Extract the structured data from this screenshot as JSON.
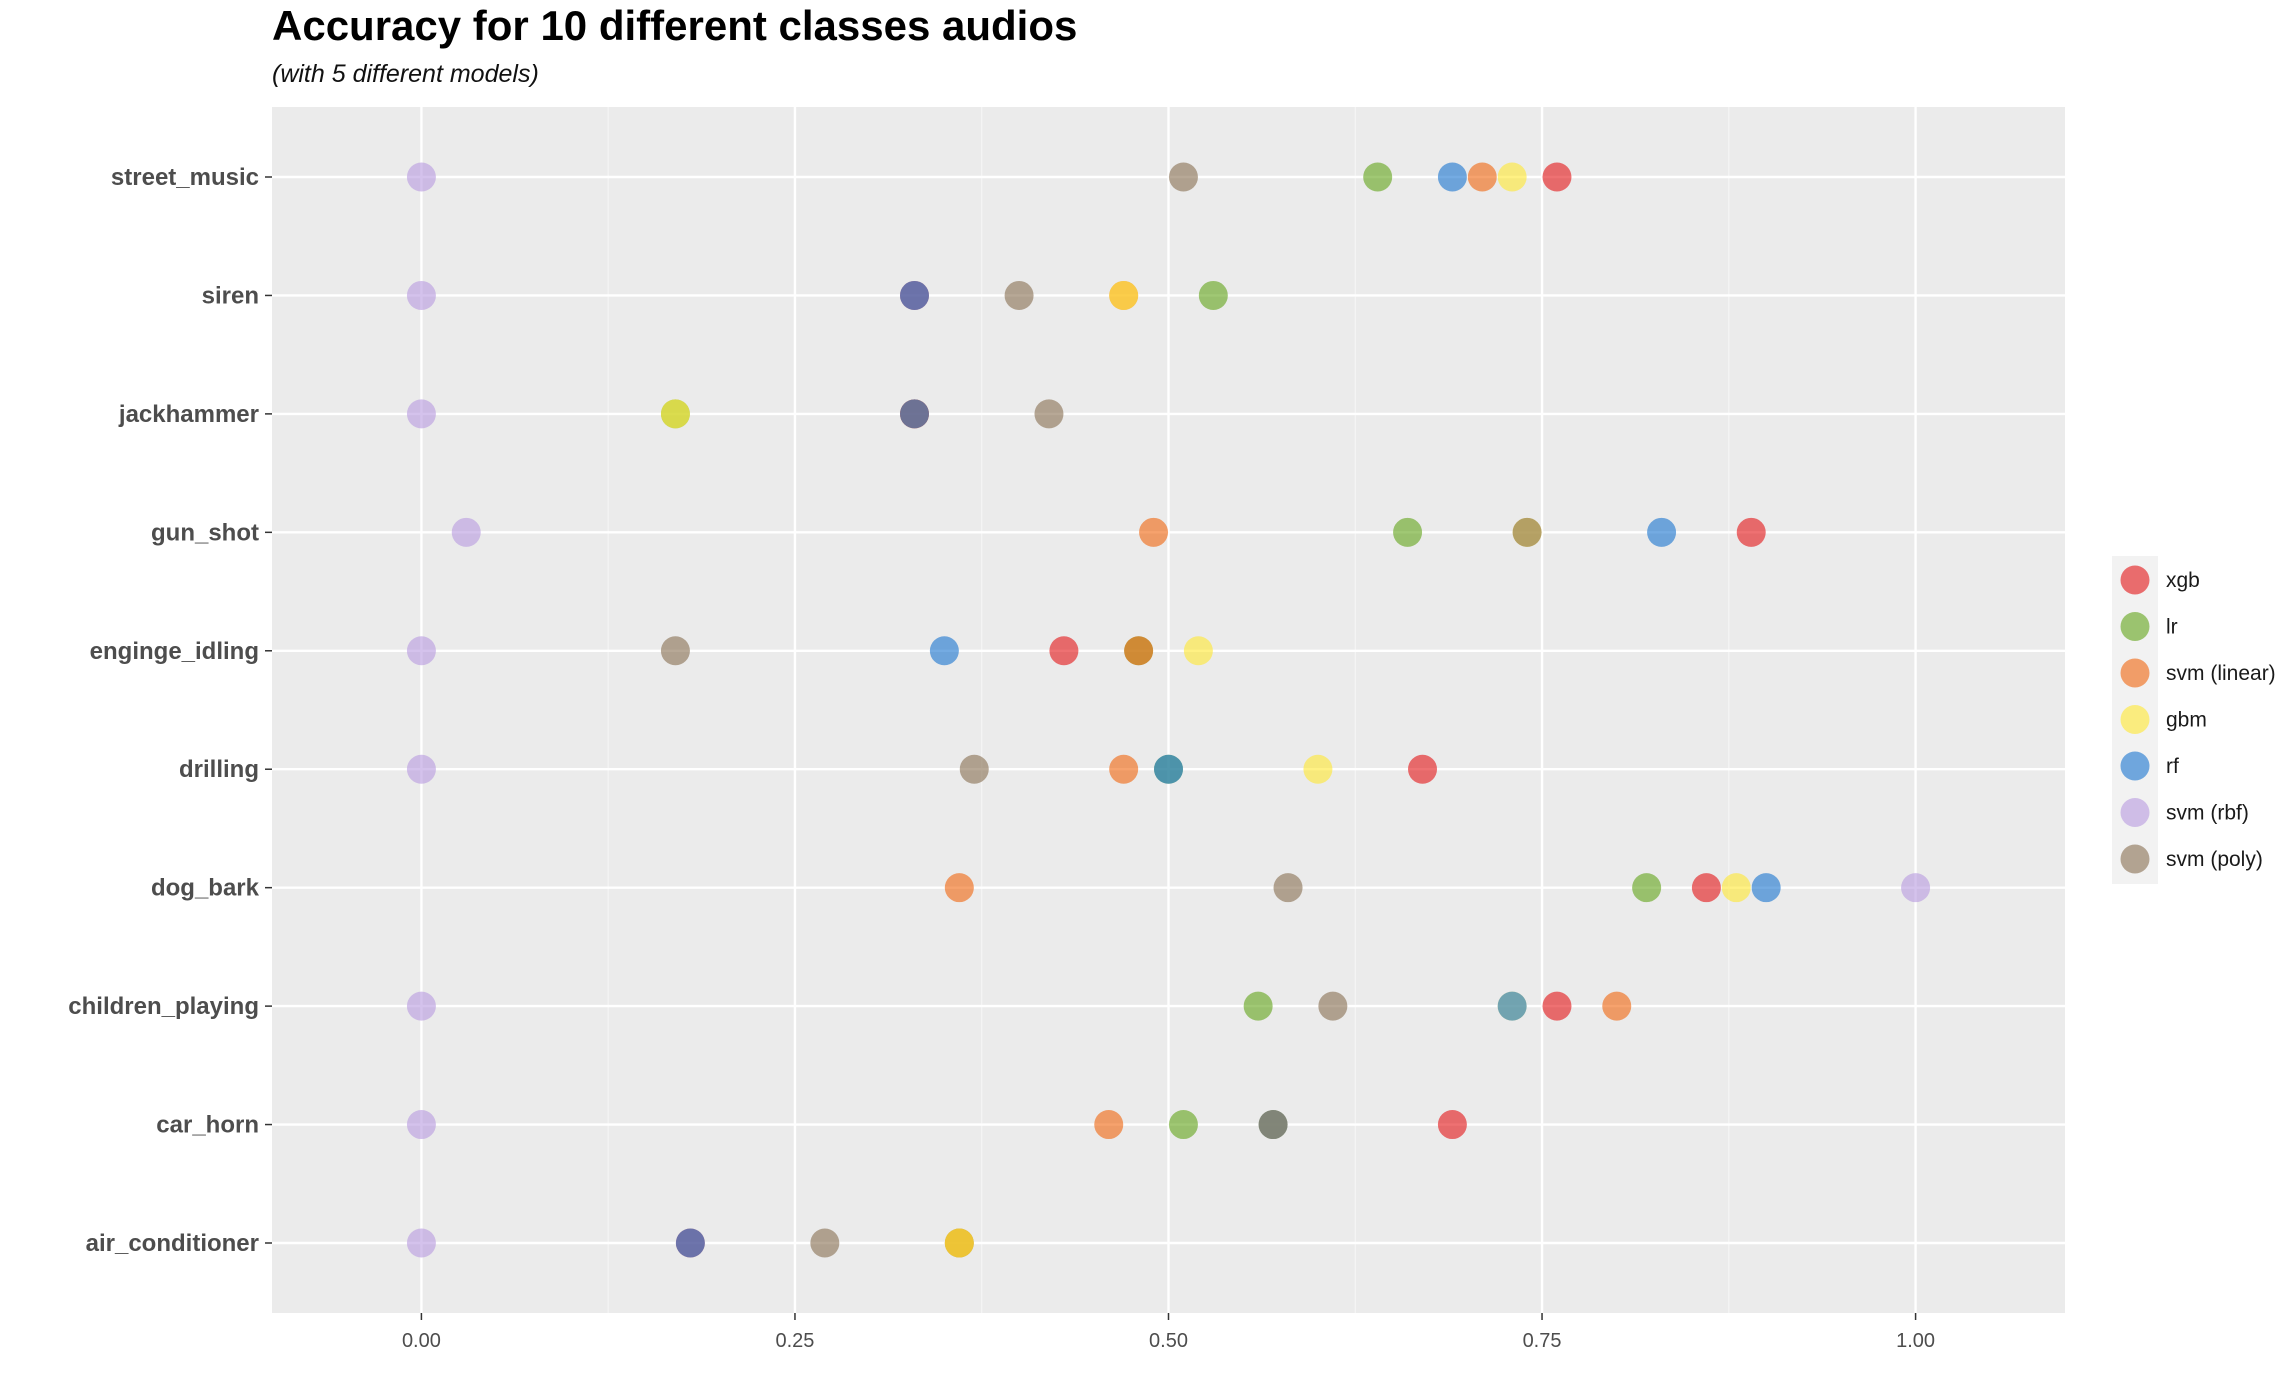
{
  "title": "Accuracy for 10 different classes audios",
  "subtitle": "(with 5 different models)",
  "chart_data": {
    "type": "scatter",
    "title": "Accuracy for 10 different classes audios",
    "subtitle": "(with 5 different models)",
    "xlabel": "",
    "ylabel": "",
    "xlim": [
      -0.1,
      1.1
    ],
    "x_ticks": [
      0,
      0.25,
      0.5,
      0.75,
      1
    ],
    "x_tick_labels": [
      "0.00",
      "0.25",
      "0.50",
      "0.75",
      "1.00"
    ],
    "categories": [
      "air_conditioner",
      "car_horn",
      "children_playing",
      "dog_bark",
      "drilling",
      "enginge_idling",
      "gun_shot",
      "jackhammer",
      "siren",
      "street_music"
    ],
    "grid": true,
    "legend_position": "right",
    "series": [
      {
        "name": "xgb",
        "color": "#E41A1C",
        "values": [
          0.18,
          0.69,
          0.76,
          0.86,
          0.67,
          0.43,
          0.89,
          0.33,
          0.33,
          0.76
        ]
      },
      {
        "name": "lr",
        "color": "#66A61E",
        "values": [
          0.36,
          0.51,
          0.56,
          0.82,
          0.5,
          0.48,
          0.66,
          0.17,
          0.53,
          0.64
        ]
      },
      {
        "name": "svm (linear)",
        "color": "#F16913",
        "values": [
          0.36,
          0.46,
          0.8,
          0.36,
          0.47,
          0.48,
          0.49,
          0.33,
          0.47,
          0.71
        ]
      },
      {
        "name": "gbm",
        "color": "#FFE837",
        "values": [
          0.36,
          0.57,
          0.73,
          0.88,
          0.6,
          0.52,
          0.74,
          0.17,
          0.47,
          0.73
        ]
      },
      {
        "name": "rf",
        "color": "#1F78D0",
        "values": [
          0.18,
          0.57,
          0.73,
          0.9,
          0.5,
          0.35,
          0.83,
          0.33,
          0.33,
          0.69
        ]
      },
      {
        "name": "svm (rbf)",
        "color": "#B99CE0",
        "values": [
          0.0,
          0.0,
          0.0,
          1.0,
          0.0,
          0.0,
          0.03,
          0.0,
          0.0,
          0.0
        ]
      },
      {
        "name": "svm (poly)",
        "color": "#8B7355",
        "values": [
          0.27,
          0.57,
          0.61,
          0.58,
          0.37,
          0.17,
          0.74,
          0.42,
          0.4,
          0.51
        ]
      }
    ]
  }
}
